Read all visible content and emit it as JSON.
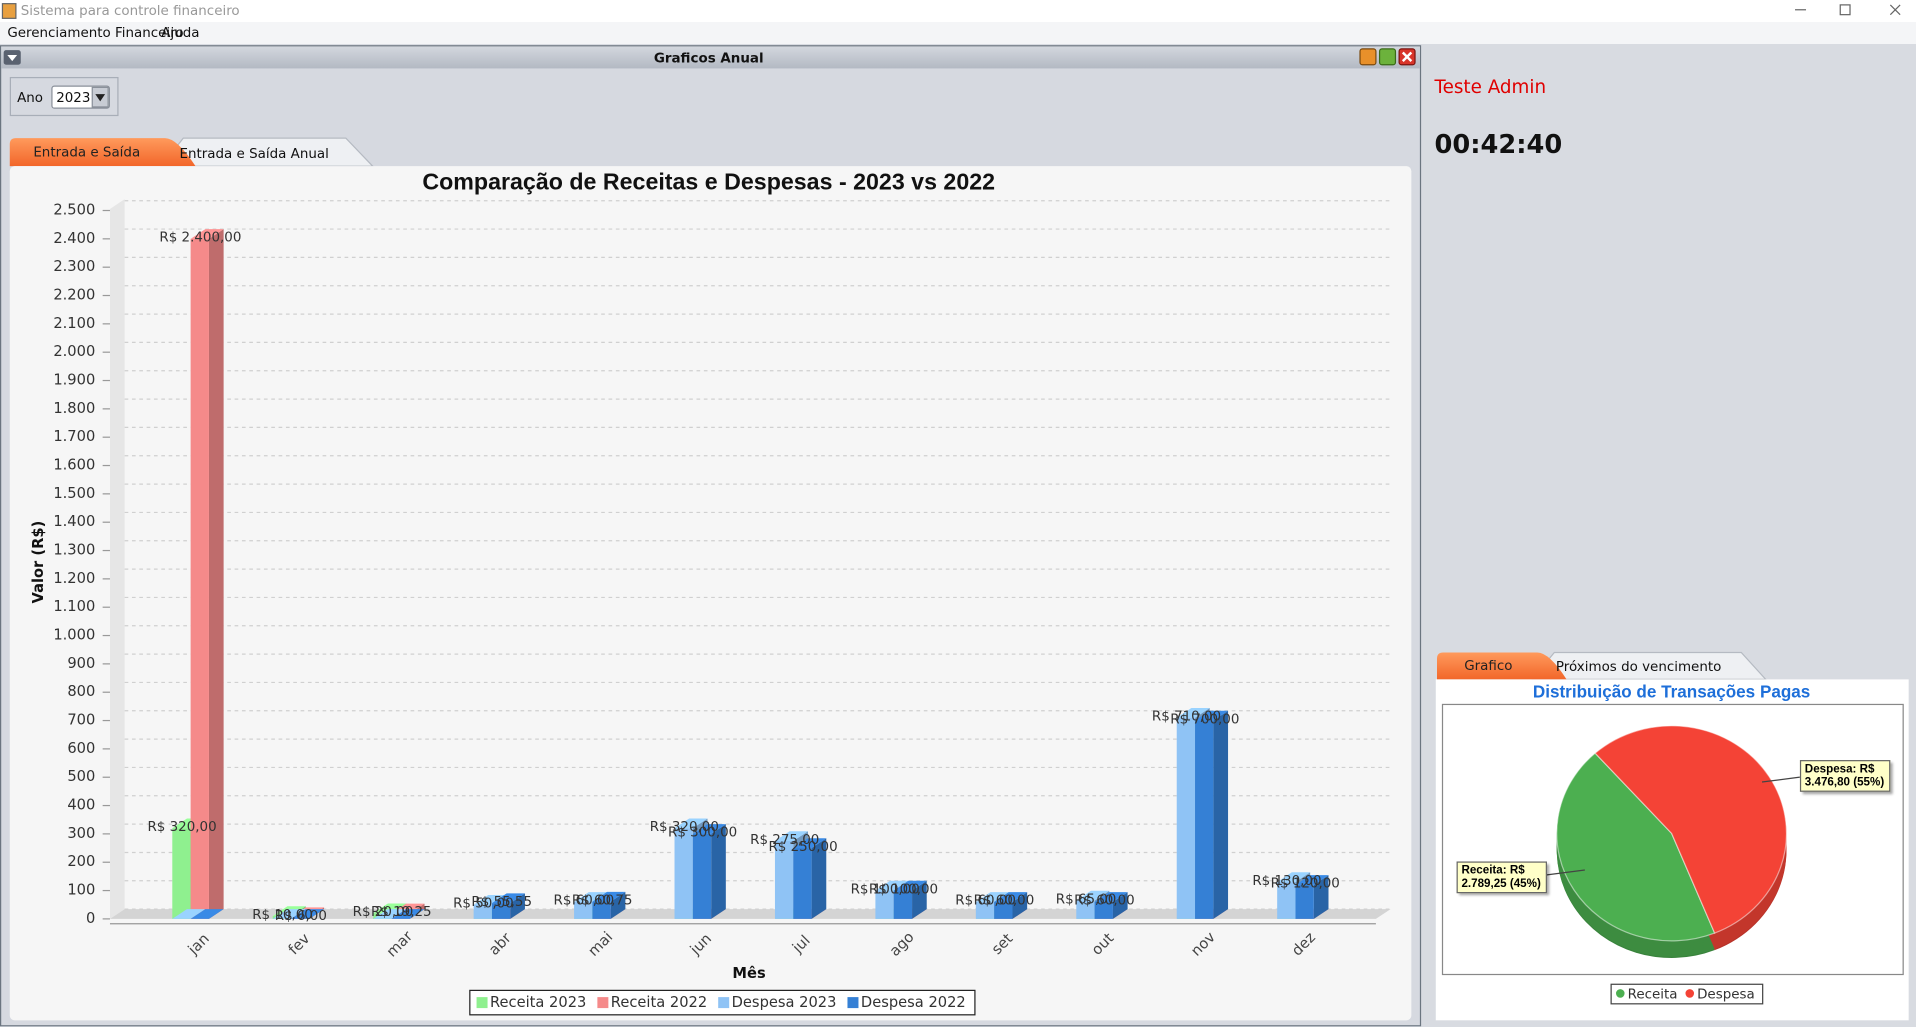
{
  "window": {
    "title": "Sistema para controle financeiro"
  },
  "menu": [
    "Gerenciamento Financeiro",
    "Ajuda"
  ],
  "frame": {
    "title": "Graficos Anual",
    "year_label": "Ano",
    "year_value": "2023",
    "tabs": [
      "Entrada e Saída",
      "Entrada e Saída Anual"
    ]
  },
  "side": {
    "user": "Teste Admin",
    "clock": "00:42:40",
    "tabs": [
      "Grafico",
      "Próximos do vencimento"
    ]
  },
  "chart_data": [
    {
      "type": "bar",
      "title": "Comparação de Receitas e Despesas - 2023 vs 2022",
      "x_label": "Mês",
      "y_label": "Valor (R$)",
      "categories": [
        "jan",
        "fev",
        "mar",
        "abr",
        "mai",
        "jun",
        "jul",
        "ago",
        "set",
        "out",
        "nov",
        "dez"
      ],
      "series": [
        {
          "name": "Receita 2023",
          "color": "#8ff08f",
          "values": [
            320,
            10,
            20,
            0,
            0,
            0,
            0,
            0,
            0,
            0,
            0,
            0
          ],
          "value_labels": [
            "R$ 320,00",
            "R$ 10,00",
            "R$ 20,00",
            null,
            null,
            null,
            null,
            null,
            null,
            null,
            null,
            null
          ]
        },
        {
          "name": "Receita 2022",
          "color": "#f58a8a",
          "values": [
            2400,
            6,
            19.25,
            0,
            0,
            0,
            0,
            0,
            0,
            0,
            0,
            0
          ],
          "value_labels": [
            "R$ 2.400,00",
            "R$ 6,00",
            "R$ 19,25",
            null,
            null,
            null,
            null,
            null,
            null,
            null,
            null,
            null
          ]
        },
        {
          "name": "Despesa 2023",
          "color": "#8fc3f5",
          "values": [
            0,
            0,
            0,
            50,
            60,
            320,
            275,
            100,
            60,
            65,
            710,
            130
          ],
          "value_labels": [
            null,
            null,
            null,
            "R$ 50,00",
            "R$ 60,00",
            "R$ 320,00",
            "R$ 275,00",
            "R$ 100,00",
            "R$ 60,00",
            "R$ 65,00",
            "R$ 710,00",
            "R$ 130,00"
          ]
        },
        {
          "name": "Despesa 2022",
          "color": "#3580d5",
          "values": [
            0,
            0,
            0,
            55.55,
            60.75,
            300,
            250,
            100,
            60,
            60,
            700,
            120
          ],
          "value_labels": [
            null,
            null,
            null,
            "R$ 55,55",
            "R$ 60,75",
            "R$ 300,00",
            "R$ 250,00",
            "R$ 100,00",
            "R$ 60,00",
            "R$ 60,00",
            "R$ 700,00",
            "R$ 120,00"
          ]
        }
      ],
      "ylim": [
        0,
        2540
      ],
      "yticks": [
        0,
        100,
        200,
        300,
        400,
        500,
        600,
        700,
        800,
        900,
        {
          "value": 1000,
          "label": "1.000"
        },
        {
          "value": 1100,
          "label": "1.100"
        },
        {
          "value": 1200,
          "label": "1.200"
        },
        {
          "value": 1300,
          "label": "1.300"
        },
        {
          "value": 1400,
          "label": "1.400"
        },
        {
          "value": 1500,
          "label": "1.500"
        },
        {
          "value": 1600,
          "label": "1.600"
        },
        {
          "value": 1700,
          "label": "1.700"
        },
        {
          "value": 1800,
          "label": "1.800"
        },
        {
          "value": 1900,
          "label": "1.900"
        },
        {
          "value": 2000,
          "label": "2.000"
        },
        {
          "value": 2100,
          "label": "2.100"
        },
        {
          "value": 2200,
          "label": "2.200"
        },
        {
          "value": 2300,
          "label": "2.300"
        },
        {
          "value": 2400,
          "label": "2.400"
        },
        {
          "value": 2500,
          "label": "2.500"
        }
      ],
      "grid": true,
      "legend": "bottom"
    },
    {
      "type": "pie",
      "title": "Distribuição de Transações Pagas",
      "categories": [
        "Receita",
        "Despesa"
      ],
      "values": [
        2789.25,
        3476.8
      ],
      "value_labels": [
        "Receita: R$ 2.789,25 (45%)",
        "Despesa: R$ 3.476,80 (55%)"
      ],
      "colors": [
        "#4caf50",
        "#f44336"
      ],
      "legend": "bottom"
    }
  ]
}
